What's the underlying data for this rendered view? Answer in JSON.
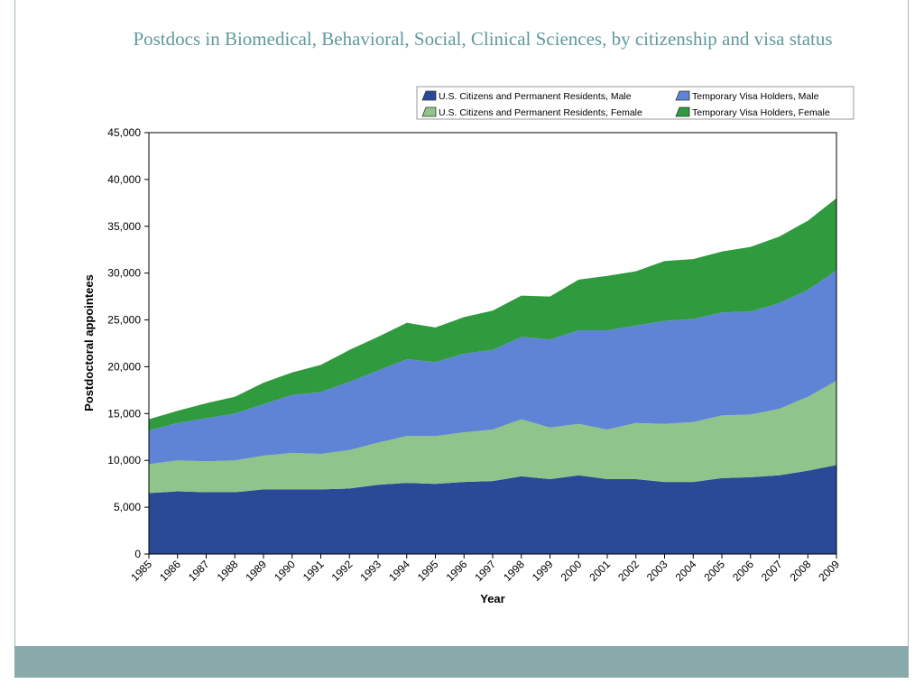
{
  "slide": {
    "title": "Postdocs in Biomedical, Behavioral, Social, Clinical Sciences, by citizenship and visa status",
    "colors": {
      "frame": "#9fb6b8",
      "footer_bar": "#8aa9ab",
      "title": "#5f9a9c"
    }
  },
  "chart_data": {
    "type": "area",
    "stacked": true,
    "title": "Postdocs in Biomedical, Behavioral, Social, Clinical Sciences, by citizenship and visa status",
    "xlabel": "Year",
    "ylabel": "Postdoctoral appointees",
    "ylim": [
      0,
      45000
    ],
    "y_ticks": [
      "0",
      "5,000",
      "10,000",
      "15,000",
      "20,000",
      "25,000",
      "30,000",
      "35,000",
      "40,000",
      "45,000"
    ],
    "grid": false,
    "legend_position": "top-right",
    "x": [
      "1985",
      "1986",
      "1987",
      "1988",
      "1989",
      "1990",
      "1991",
      "1992",
      "1993",
      "1994",
      "1995",
      "1996",
      "1997",
      "1998",
      "1999",
      "2000",
      "2001",
      "2002",
      "2003",
      "2004",
      "2005",
      "2006",
      "2007",
      "2008",
      "2009"
    ],
    "series": [
      {
        "name": "U.S. Citizens and Permanent Residents, Male",
        "color": "#2a4a98",
        "values": [
          6500,
          6700,
          6600,
          6600,
          6900,
          6900,
          6900,
          7000,
          7400,
          7600,
          7500,
          7700,
          7800,
          8300,
          8000,
          8400,
          8000,
          8000,
          7700,
          7700,
          8100,
          8200,
          8400,
          8900,
          9500
        ]
      },
      {
        "name": "U.S. Citizens and Permanent Residents, Female",
        "color": "#8fc48a",
        "values": [
          3100,
          3300,
          3300,
          3400,
          3600,
          3900,
          3800,
          4100,
          4500,
          5000,
          5100,
          5300,
          5500,
          6100,
          5500,
          5500,
          5300,
          6000,
          6200,
          6400,
          6700,
          6700,
          7100,
          7900,
          9000
        ]
      },
      {
        "name": "Temporary Visa Holders, Male",
        "color": "#5f84d6",
        "values": [
          3600,
          4000,
          4600,
          5000,
          5500,
          6200,
          6600,
          7300,
          7700,
          8200,
          7900,
          8400,
          8500,
          8800,
          9400,
          10000,
          10600,
          10400,
          11000,
          11000,
          11000,
          11000,
          11300,
          11400,
          11800
        ]
      },
      {
        "name": "Temporary Visa Holders, Female",
        "color": "#2f9b3e",
        "values": [
          1200,
          1300,
          1600,
          1800,
          2300,
          2400,
          2900,
          3400,
          3600,
          3900,
          3700,
          3900,
          4200,
          4400,
          4600,
          5400,
          5800,
          5800,
          6400,
          6400,
          6500,
          6900,
          7100,
          7400,
          7700
        ]
      }
    ]
  }
}
